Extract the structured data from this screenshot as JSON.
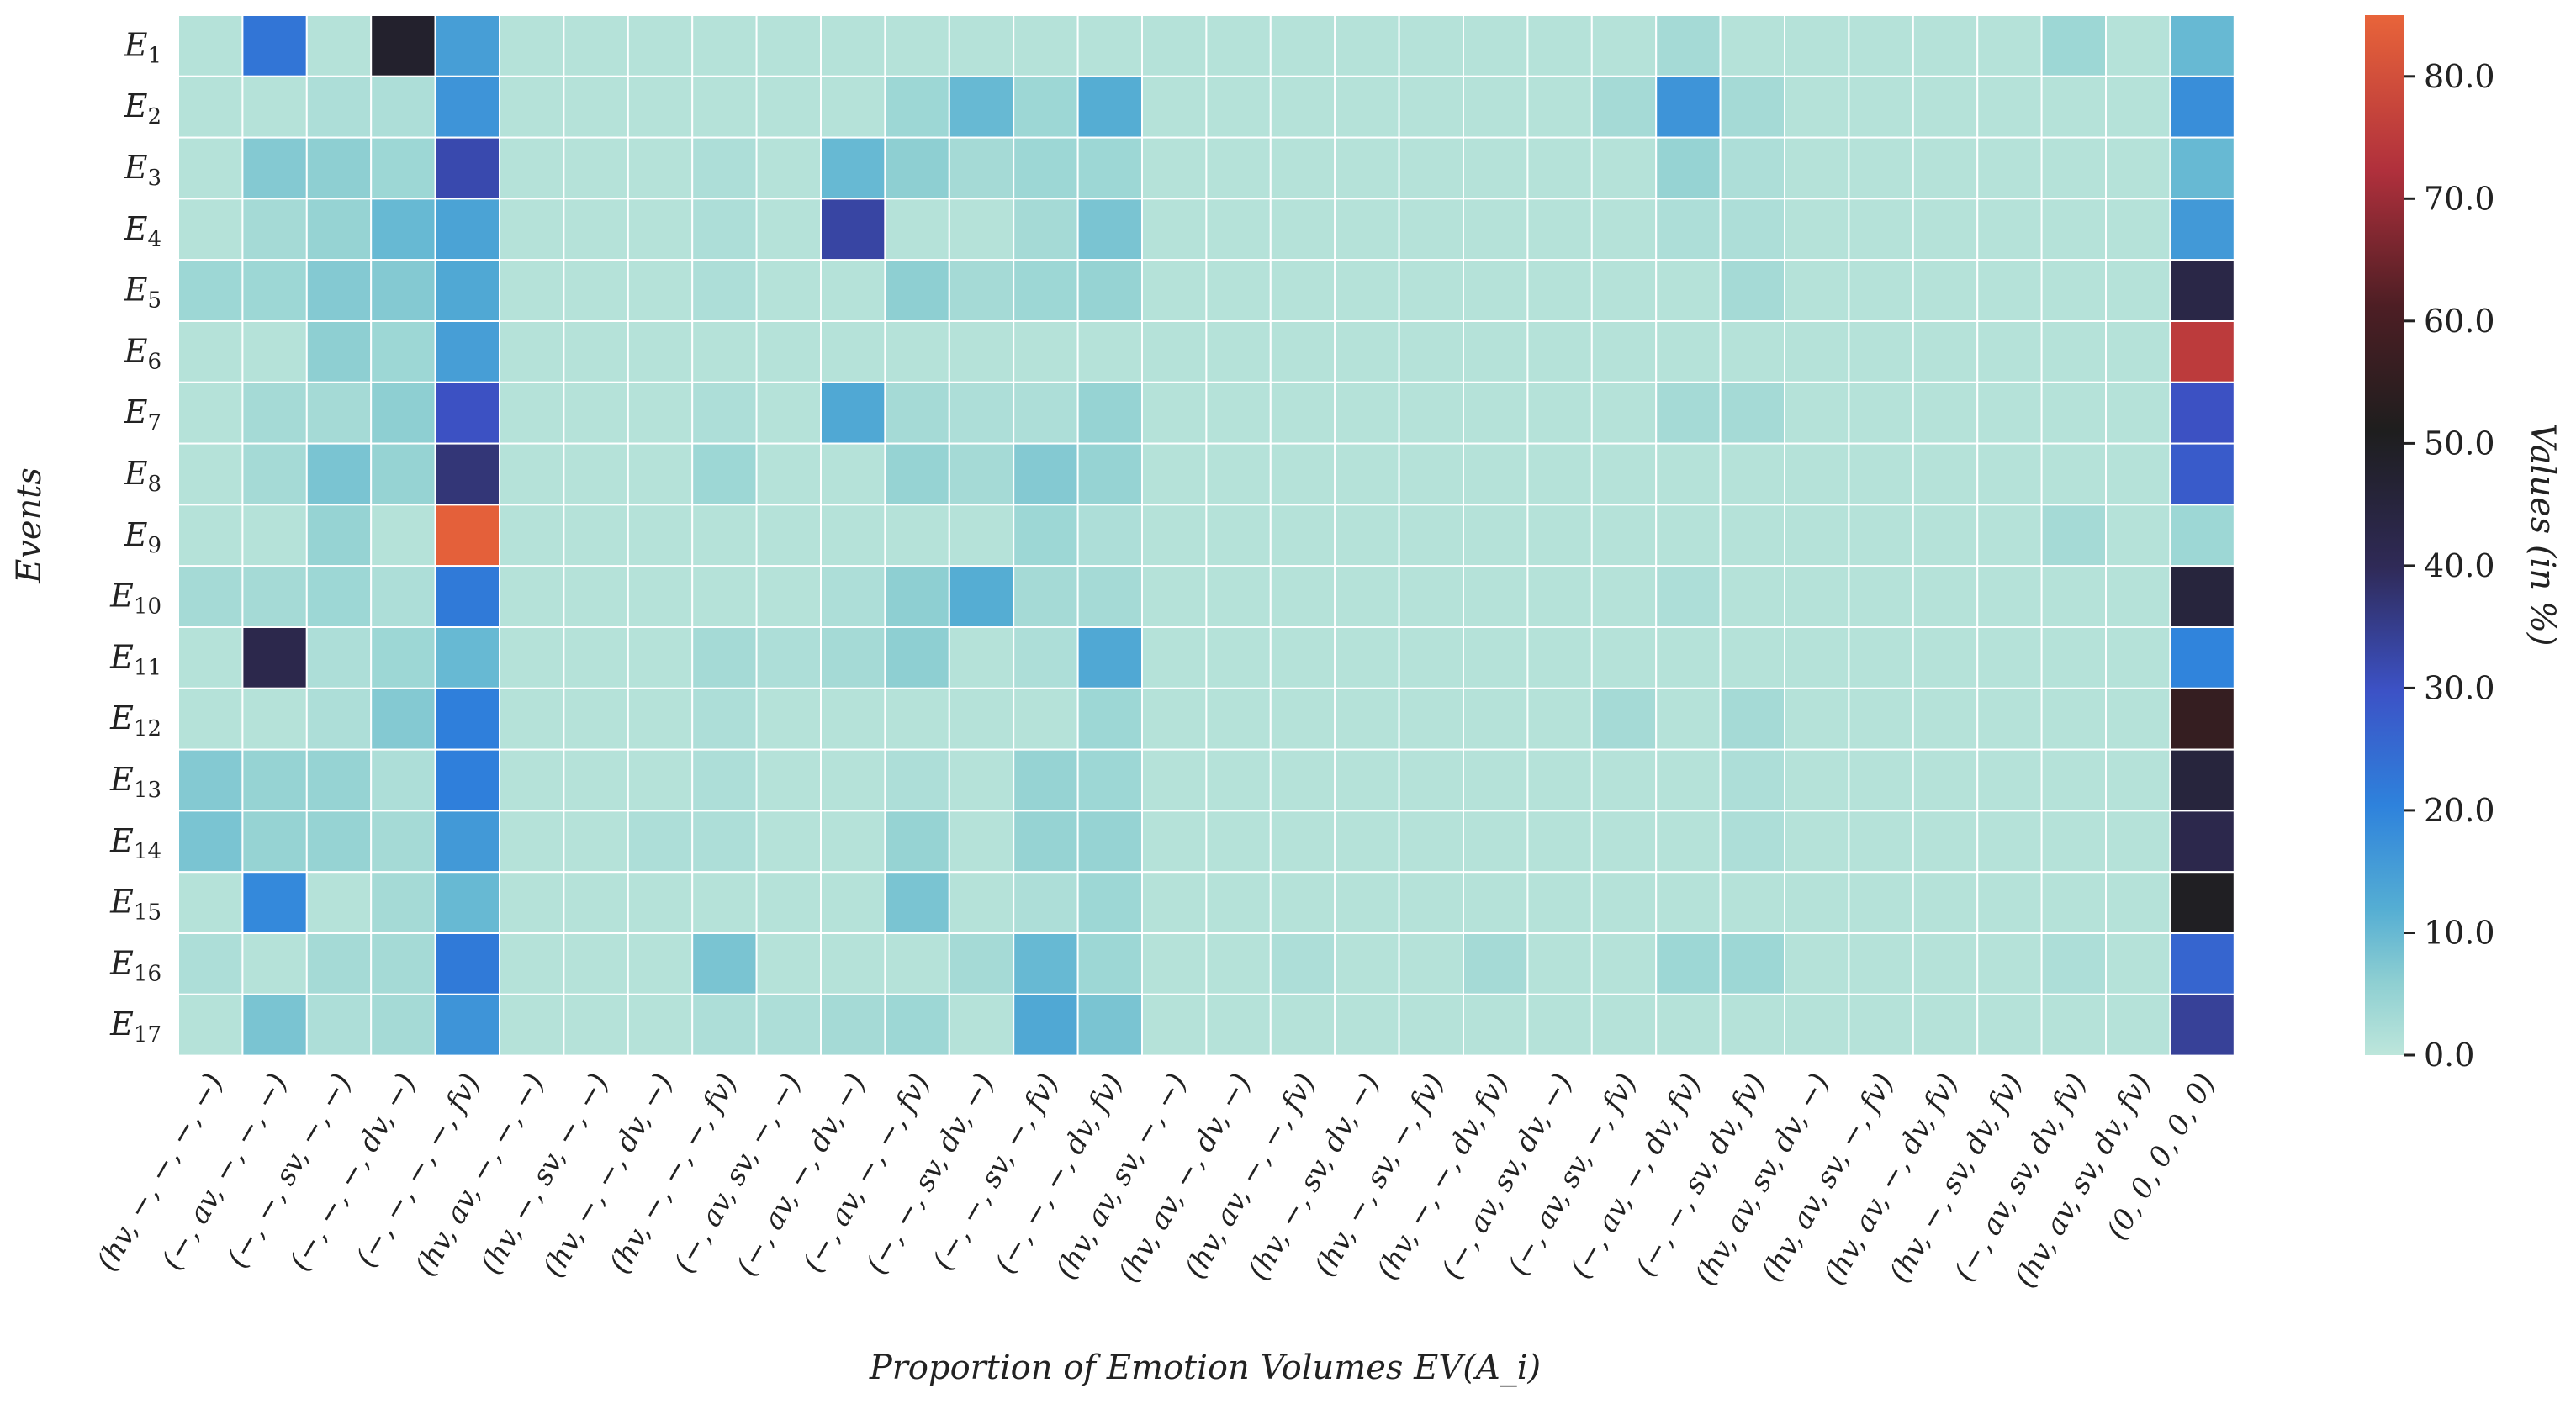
{
  "chart_data": {
    "type": "heatmap",
    "title": "",
    "xlabel": "Proportion of Emotion Volumes EV(A_i)",
    "ylabel": "Events",
    "colorbar_label": "Values (in %)",
    "colorbar_ticks": [
      "0.0",
      "10.0",
      "20.0",
      "30.0",
      "40.0",
      "50.0",
      "60.0",
      "70.0",
      "80.0"
    ],
    "value_range": [
      0,
      85
    ],
    "colormap": "icefire",
    "rows": [
      {
        "base": "E",
        "sub": "1"
      },
      {
        "base": "E",
        "sub": "2"
      },
      {
        "base": "E",
        "sub": "3"
      },
      {
        "base": "E",
        "sub": "4"
      },
      {
        "base": "E",
        "sub": "5"
      },
      {
        "base": "E",
        "sub": "6"
      },
      {
        "base": "E",
        "sub": "7"
      },
      {
        "base": "E",
        "sub": "8"
      },
      {
        "base": "E",
        "sub": "9"
      },
      {
        "base": "E",
        "sub": "10"
      },
      {
        "base": "E",
        "sub": "11"
      },
      {
        "base": "E",
        "sub": "12"
      },
      {
        "base": "E",
        "sub": "13"
      },
      {
        "base": "E",
        "sub": "14"
      },
      {
        "base": "E",
        "sub": "15"
      },
      {
        "base": "E",
        "sub": "16"
      },
      {
        "base": "E",
        "sub": "17"
      }
    ],
    "columns": [
      "(hv, −, −, −, −)",
      "(−, av, −, −, −)",
      "(−, −, sv, −, −)",
      "(−, −, −, dv, −)",
      "(−, −, −, −, fv)",
      "(hv, av, −, −, −)",
      "(hv, −, sv, −, −)",
      "(hv, −, −, dv, −)",
      "(hv, −, −, −, fv)",
      "(−, av, sv, −, −)",
      "(−, av, −, dv, −)",
      "(−, av, −, −, fv)",
      "(−, −, sv, dv, −)",
      "(−, −, sv, −, fv)",
      "(−, −, −, dv, fv)",
      "(hv, av, sv, −, −)",
      "(hv, av, −, dv, −)",
      "(hv, av, −, −, fv)",
      "(hv, −, sv, dv, −)",
      "(hv, −, sv, −, fv)",
      "(hv, −, −, dv, fv)",
      "(−, av, sv, dv, −)",
      "(−, av, sv, −, fv)",
      "(−, av, −, dv, fv)",
      "(−, −, sv, dv, fv)",
      "(hv, av, sv, dv, −)",
      "(hv, av, sv, −, fv)",
      "(hv, av, −, dv, fv)",
      "(hv, −, sv, dv, fv)",
      "(−, av, sv, dv, fv)",
      "(hv, av, sv, dv, fv)",
      "(0, 0, 0, 0, 0)"
    ],
    "values": [
      [
        1,
        23,
        1,
        48,
        15,
        1,
        1,
        1,
        1,
        1,
        1,
        1,
        1,
        1,
        1,
        1,
        1,
        1,
        1,
        1,
        1,
        1,
        1,
        3,
        1,
        1,
        1,
        1,
        1,
        4,
        1,
        10
      ],
      [
        1,
        1,
        2,
        2,
        17,
        1,
        1,
        1,
        1,
        1,
        1,
        4,
        10,
        4,
        12,
        1,
        1,
        1,
        1,
        1,
        1,
        1,
        3,
        17,
        3,
        1,
        1,
        1,
        1,
        1,
        1,
        18
      ],
      [
        1,
        7,
        6,
        4,
        32,
        1,
        1,
        1,
        2,
        1,
        10,
        6,
        3,
        4,
        4,
        1,
        1,
        1,
        1,
        1,
        1,
        1,
        1,
        5,
        2,
        1,
        1,
        1,
        1,
        1,
        1,
        10
      ],
      [
        1,
        3,
        5,
        10,
        14,
        1,
        1,
        1,
        2,
        1,
        33,
        1,
        1,
        3,
        8,
        1,
        1,
        1,
        1,
        1,
        1,
        1,
        1,
        2,
        2,
        1,
        1,
        1,
        1,
        1,
        1,
        16
      ],
      [
        4,
        4,
        7,
        7,
        13,
        1,
        1,
        1,
        2,
        1,
        1,
        6,
        3,
        4,
        5,
        1,
        1,
        1,
        1,
        1,
        1,
        1,
        1,
        1,
        3,
        1,
        1,
        1,
        1,
        1,
        1,
        43
      ],
      [
        1,
        1,
        6,
        4,
        15,
        1,
        1,
        1,
        1,
        1,
        1,
        1,
        1,
        1,
        1,
        1,
        1,
        1,
        1,
        1,
        1,
        1,
        1,
        1,
        1,
        1,
        1,
        1,
        1,
        1,
        1,
        75
      ],
      [
        1,
        3,
        3,
        6,
        30,
        1,
        1,
        1,
        2,
        1,
        13,
        3,
        2,
        2,
        5,
        1,
        1,
        1,
        1,
        1,
        1,
        1,
        1,
        3,
        3,
        1,
        1,
        1,
        1,
        1,
        1,
        30
      ],
      [
        1,
        3,
        8,
        5,
        37,
        1,
        1,
        1,
        4,
        1,
        1,
        5,
        3,
        7,
        5,
        1,
        1,
        1,
        1,
        1,
        1,
        1,
        1,
        1,
        1,
        1,
        1,
        1,
        1,
        1,
        1,
        28
      ],
      [
        1,
        1,
        5,
        1,
        84,
        1,
        1,
        1,
        1,
        1,
        1,
        1,
        1,
        4,
        2,
        1,
        1,
        1,
        1,
        1,
        1,
        1,
        1,
        1,
        1,
        1,
        1,
        1,
        1,
        3,
        1,
        4
      ],
      [
        3,
        3,
        4,
        2,
        22,
        1,
        1,
        1,
        1,
        1,
        2,
        6,
        12,
        3,
        3,
        1,
        1,
        1,
        1,
        1,
        1,
        1,
        1,
        2,
        1,
        1,
        1,
        1,
        1,
        1,
        1,
        45
      ],
      [
        1,
        42,
        2,
        4,
        10,
        1,
        1,
        1,
        3,
        2,
        3,
        6,
        1,
        2,
        13,
        1,
        1,
        1,
        1,
        1,
        1,
        1,
        1,
        1,
        1,
        1,
        1,
        1,
        1,
        1,
        1,
        20
      ],
      [
        1,
        1,
        2,
        7,
        21,
        1,
        1,
        1,
        2,
        1,
        1,
        1,
        1,
        1,
        4,
        1,
        1,
        1,
        1,
        1,
        1,
        1,
        3,
        1,
        3,
        1,
        1,
        1,
        1,
        1,
        1,
        56
      ],
      [
        7,
        5,
        5,
        2,
        21,
        1,
        1,
        1,
        2,
        1,
        1,
        2,
        1,
        5,
        4,
        1,
        1,
        1,
        1,
        1,
        1,
        1,
        1,
        1,
        2,
        1,
        1,
        1,
        1,
        1,
        1,
        45
      ],
      [
        8,
        5,
        5,
        3,
        16,
        1,
        1,
        2,
        2,
        1,
        1,
        5,
        1,
        5,
        5,
        1,
        1,
        1,
        1,
        1,
        1,
        1,
        1,
        1,
        2,
        1,
        1,
        1,
        1,
        1,
        1,
        42
      ],
      [
        1,
        19,
        1,
        3,
        10,
        1,
        1,
        1,
        1,
        1,
        1,
        8,
        1,
        2,
        4,
        1,
        1,
        1,
        1,
        1,
        1,
        1,
        1,
        1,
        1,
        1,
        1,
        1,
        1,
        1,
        1,
        50
      ],
      [
        2,
        1,
        3,
        3,
        22,
        1,
        1,
        1,
        8,
        1,
        1,
        1,
        3,
        10,
        4,
        1,
        1,
        2,
        1,
        1,
        3,
        1,
        1,
        4,
        4,
        1,
        1,
        1,
        1,
        2,
        1,
        26
      ],
      [
        1,
        8,
        2,
        3,
        17,
        1,
        1,
        1,
        2,
        2,
        3,
        4,
        1,
        13,
        8,
        1,
        1,
        1,
        1,
        1,
        1,
        1,
        1,
        1,
        1,
        1,
        1,
        1,
        1,
        1,
        1,
        34
      ]
    ]
  }
}
